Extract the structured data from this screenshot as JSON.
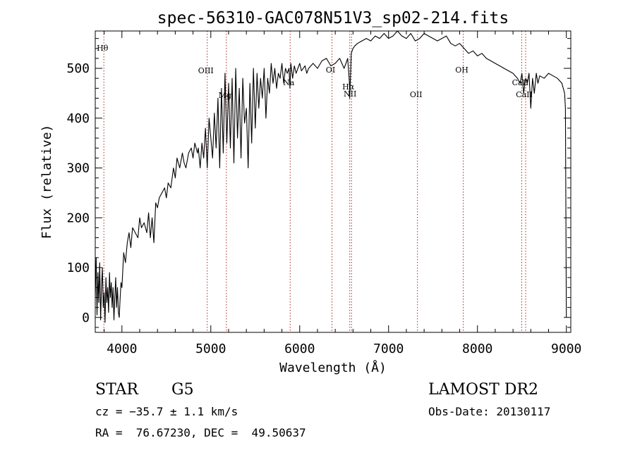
{
  "chart_data": {
    "type": "line",
    "title": "spec-56310-GAC078N51V3_sp02-214.fits",
    "xlabel": "Wavelength (Å)",
    "ylabel": "Flux (relative)",
    "xlim": [
      3700,
      9050
    ],
    "ylim": [
      -30,
      575
    ],
    "x_ticks": [
      4000,
      5000,
      6000,
      7000,
      8000,
      9000
    ],
    "y_ticks": [
      0,
      100,
      200,
      300,
      400,
      500
    ],
    "grid": false,
    "line_color": "#000000",
    "marker_color": "#b22222",
    "series": [
      {
        "x": [
          3700,
          3710,
          3720,
          3730,
          3740,
          3750,
          3760,
          3770,
          3780,
          3790,
          3800,
          3810,
          3820,
          3830,
          3840,
          3850,
          3860,
          3870,
          3880,
          3890,
          3900,
          3910,
          3920,
          3930,
          3940,
          3950,
          3960,
          3970,
          3980,
          3990,
          4000,
          4020,
          4040,
          4060,
          4080,
          4100,
          4120,
          4150,
          4180,
          4200,
          4220,
          4250,
          4280,
          4300,
          4320,
          4340,
          4360,
          4380,
          4400,
          4420,
          4450,
          4480,
          4500,
          4520,
          4550,
          4580,
          4600,
          4620,
          4650,
          4680,
          4700,
          4720,
          4750,
          4780,
          4800,
          4820,
          4850,
          4860,
          4880,
          4900,
          4920,
          4940,
          4960,
          4980,
          5000,
          5020,
          5040,
          5060,
          5080,
          5100,
          5120,
          5140,
          5160,
          5180,
          5200,
          5220,
          5240,
          5260,
          5280,
          5300,
          5320,
          5340,
          5360,
          5380,
          5400,
          5420,
          5440,
          5460,
          5480,
          5500,
          5520,
          5540,
          5560,
          5580,
          5600,
          5620,
          5640,
          5660,
          5680,
          5700,
          5720,
          5740,
          5760,
          5780,
          5800,
          5820,
          5840,
          5860,
          5880,
          5890,
          5900,
          5920,
          5940,
          5960,
          5980,
          6000,
          6020,
          6040,
          6060,
          6080,
          6100,
          6150,
          6200,
          6250,
          6300,
          6350,
          6400,
          6450,
          6500,
          6520,
          6540,
          6560,
          6563,
          6580,
          6600,
          6620,
          6650,
          6700,
          6750,
          6800,
          6850,
          6900,
          6950,
          7000,
          7050,
          7100,
          7150,
          7200,
          7250,
          7300,
          7350,
          7400,
          7450,
          7500,
          7550,
          7600,
          7650,
          7700,
          7750,
          7800,
          7850,
          7900,
          7950,
          8000,
          8050,
          8100,
          8150,
          8200,
          8250,
          8300,
          8350,
          8400,
          8450,
          8480,
          8500,
          8520,
          8542,
          8560,
          8580,
          8600,
          8620,
          8640,
          8662,
          8680,
          8700,
          8750,
          8800,
          8850,
          8900,
          8950,
          8980,
          8990,
          9000
        ],
        "y": [
          40,
          120,
          5,
          90,
          30,
          110,
          -5,
          60,
          100,
          20,
          50,
          -10,
          80,
          30,
          60,
          10,
          90,
          40,
          70,
          20,
          60,
          -5,
          40,
          80,
          20,
          60,
          10,
          0,
          40,
          70,
          60,
          130,
          110,
          150,
          170,
          140,
          180,
          170,
          160,
          200,
          180,
          190,
          170,
          210,
          160,
          200,
          150,
          230,
          220,
          240,
          250,
          260,
          240,
          270,
          260,
          300,
          280,
          320,
          300,
          330,
          310,
          300,
          330,
          340,
          320,
          350,
          330,
          340,
          300,
          350,
          320,
          380,
          300,
          400,
          360,
          320,
          410,
          340,
          440,
          300,
          460,
          330,
          490,
          350,
          470,
          340,
          480,
          310,
          500,
          360,
          460,
          320,
          480,
          390,
          420,
          300,
          470,
          350,
          500,
          380,
          490,
          420,
          480,
          440,
          500,
          400,
          480,
          450,
          510,
          470,
          500,
          460,
          490,
          480,
          510,
          470,
          500,
          490,
          500,
          460,
          510,
          480,
          505,
          490,
          500,
          510,
          495,
          500,
          505,
          490,
          500,
          510,
          500,
          515,
          520,
          505,
          510,
          520,
          500,
          510,
          520,
          470,
          440,
          530,
          540,
          545,
          550,
          555,
          560,
          555,
          565,
          560,
          570,
          560,
          565,
          575,
          565,
          560,
          570,
          555,
          560,
          570,
          565,
          560,
          555,
          560,
          565,
          550,
          545,
          550,
          540,
          530,
          535,
          525,
          530,
          520,
          515,
          510,
          505,
          500,
          495,
          490,
          480,
          470,
          490,
          450,
          480,
          470,
          490,
          420,
          480,
          450,
          490,
          470,
          485,
          480,
          490,
          485,
          480,
          470,
          450,
          420,
          0
        ]
      }
    ],
    "lines": [
      {
        "label": "Hθ",
        "x": 3797
      },
      {
        "label": "OIII",
        "x": 4960
      },
      {
        "label": "Mg",
        "x": 5175
      },
      {
        "label": "Na",
        "x": 5893
      },
      {
        "label": "OI",
        "x": 6363
      },
      {
        "label": "Hα",
        "x": 6563
      },
      {
        "label": "NII",
        "x": 6583
      },
      {
        "label": "OII",
        "x": 7325
      },
      {
        "label": "OH",
        "x": 7840
      },
      {
        "label": "CaII",
        "x": 8498
      },
      {
        "label": "CaII",
        "x": 8542
      }
    ]
  },
  "info": {
    "object_type": "STAR",
    "subclass": "G5",
    "survey": "LAMOST DR2",
    "velocity": "cz = −35.7 ± 1.1 km/s",
    "obs_date": "Obs-Date: 20130117",
    "coords": "RA =  76.67230, DEC =  49.50637"
  }
}
